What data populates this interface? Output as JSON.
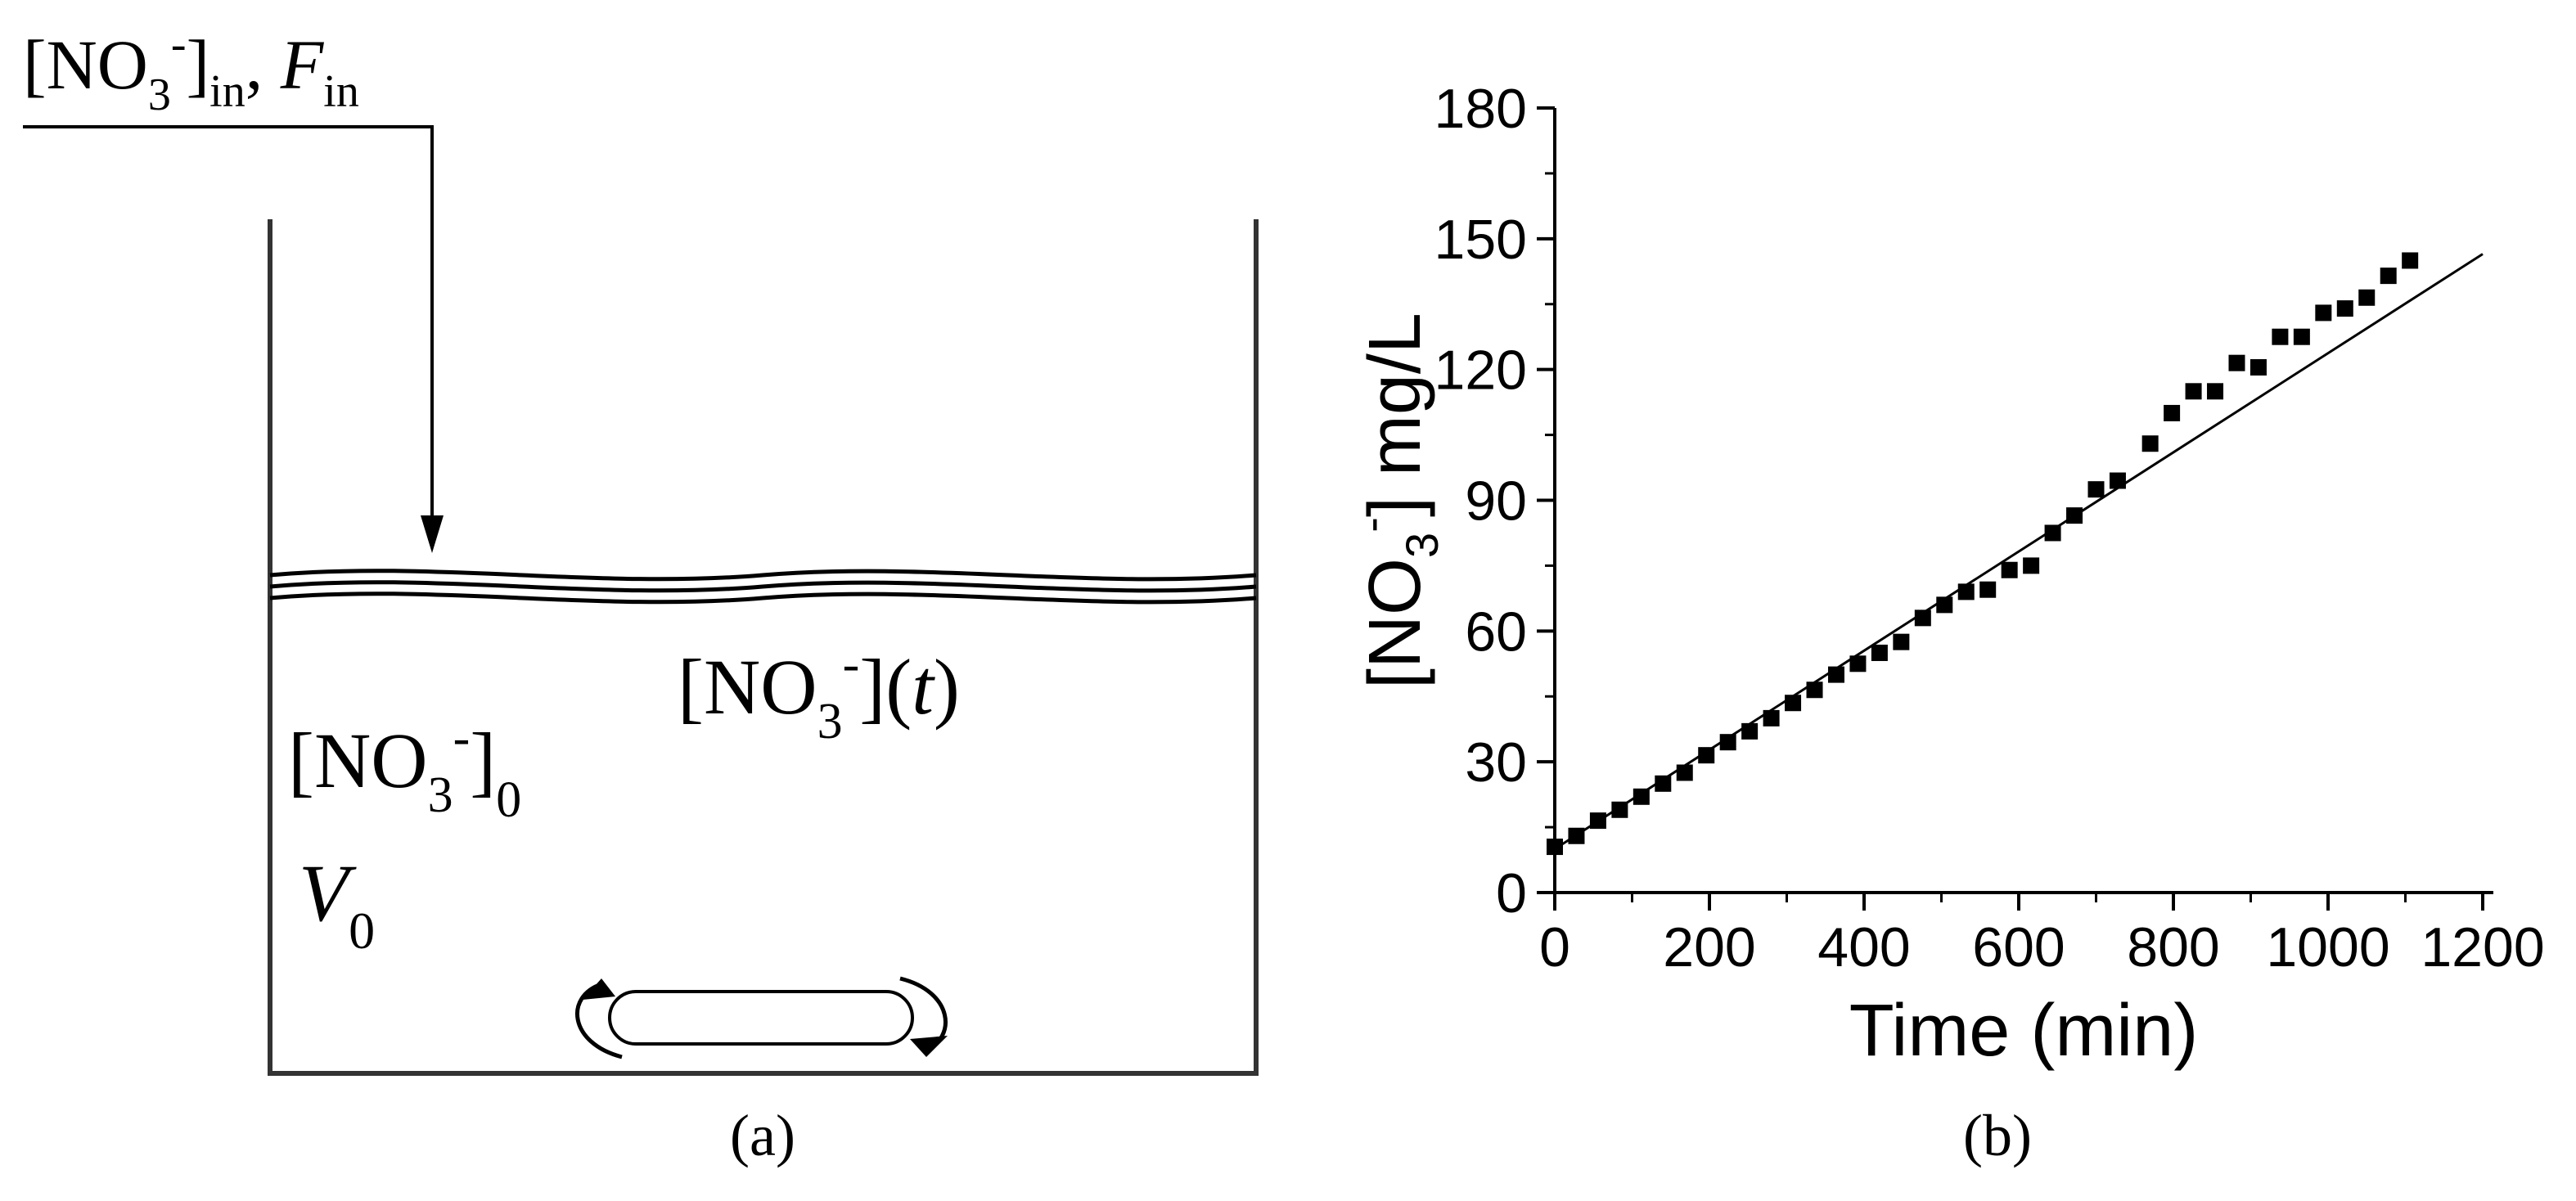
{
  "panel_a": {
    "inlet": {
      "no3": "[NO",
      "sub3": "3",
      "sup": "-",
      "close_in": "]",
      "sub_in": "in",
      "sep": ", ",
      "F": "F",
      "sub_in2": "in"
    },
    "conc_t": {
      "no3": "[NO",
      "sub3": "3",
      "sup": "-",
      "close": "](",
      "t": "t",
      "end": ")"
    },
    "conc_0": {
      "no3": "[NO",
      "sub3": "3",
      "sup": "-",
      "close": "]",
      "sub0": "0"
    },
    "volume": {
      "V": "V",
      "sub0": "0"
    },
    "caption": "(a)"
  },
  "panel_b": {
    "caption": "(b)"
  },
  "chart_data": {
    "type": "scatter",
    "xlabel": "Time (min)",
    "ylabel": {
      "pre": "[NO",
      "sub": "3",
      "sup": "-",
      "post": "] mg/L"
    },
    "xlim": [
      0,
      1200
    ],
    "ylim": [
      0,
      180
    ],
    "xticks": [
      0,
      200,
      400,
      600,
      800,
      1000,
      1200
    ],
    "yticks": [
      0,
      30,
      60,
      90,
      120,
      150,
      180
    ],
    "grid": false,
    "series": [
      {
        "marker": "square",
        "color": "#000000",
        "points": [
          [
            0,
            10.5
          ],
          [
            28,
            13
          ],
          [
            56,
            16.5
          ],
          [
            84,
            19
          ],
          [
            112,
            22
          ],
          [
            140,
            25
          ],
          [
            168,
            27.5
          ],
          [
            196,
            31.5
          ],
          [
            224,
            34.5
          ],
          [
            252,
            37
          ],
          [
            280,
            40
          ],
          [
            308,
            43.5
          ],
          [
            336,
            46.5
          ],
          [
            364,
            50
          ],
          [
            392,
            52.5
          ],
          [
            420,
            55
          ],
          [
            448,
            57.5
          ],
          [
            476,
            63
          ],
          [
            504,
            66
          ],
          [
            532,
            69
          ],
          [
            560,
            69.5
          ],
          [
            588,
            74
          ],
          [
            616,
            75
          ],
          [
            644,
            82.5
          ],
          [
            672,
            86.5
          ],
          [
            700,
            92.5
          ],
          [
            728,
            94.5
          ],
          [
            770,
            103
          ],
          [
            798,
            110
          ],
          [
            826,
            115
          ],
          [
            854,
            115
          ],
          [
            882,
            121.5
          ],
          [
            910,
            120.5
          ],
          [
            938,
            127.5
          ],
          [
            966,
            127.5
          ],
          [
            994,
            133
          ],
          [
            1022,
            134
          ],
          [
            1050,
            136.5
          ],
          [
            1078,
            141.5
          ],
          [
            1106,
            145
          ]
        ]
      }
    ],
    "fit_line": {
      "x": [
        0,
        1200
      ],
      "y": [
        10,
        146.5
      ],
      "color": "#000000"
    }
  }
}
